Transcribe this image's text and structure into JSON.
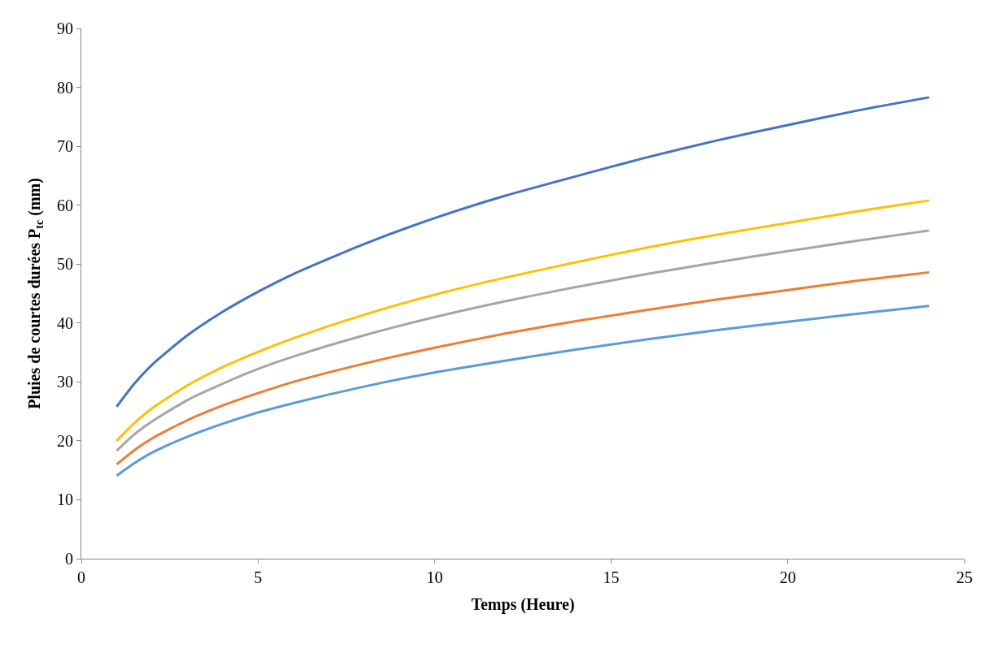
{
  "chart_data": {
    "type": "line",
    "xlabel": "Temps (Heure)",
    "ylabel": "Pluies de courtes durées P$_{tc}$ (mm)",
    "x": [
      1,
      1.5,
      2,
      3,
      4,
      5,
      6,
      8,
      10,
      12,
      14,
      16,
      18,
      20,
      22,
      24
    ],
    "series": [
      {
        "color": "#4472c4",
        "values": [
          25.8,
          29.7,
          32.9,
          37.9,
          41.9,
          45.3,
          48.3,
          53.4,
          57.8,
          61.6,
          64.9,
          68.1,
          71.0,
          73.6,
          76.1,
          78.3
        ]
      },
      {
        "color": "#ed7d31",
        "values": [
          16.0,
          18.4,
          20.4,
          23.5,
          26.0,
          28.1,
          30.0,
          33.1,
          35.8,
          38.2,
          40.3,
          42.2,
          44.0,
          45.6,
          47.2,
          48.6
        ]
      },
      {
        "color": "#a5a5a5",
        "values": [
          18.3,
          21.1,
          23.3,
          26.9,
          29.7,
          32.2,
          34.3,
          37.9,
          41.0,
          43.7,
          46.1,
          48.3,
          50.3,
          52.2,
          54.0,
          55.7
        ]
      },
      {
        "color": "#ffc000",
        "values": [
          20.0,
          23.0,
          25.5,
          29.4,
          32.5,
          35.1,
          37.4,
          41.4,
          44.8,
          47.7,
          50.3,
          52.8,
          55.0,
          57.0,
          59.0,
          60.8
        ]
      },
      {
        "color": "#5b9bd5",
        "values": [
          14.1,
          16.2,
          18.0,
          20.7,
          22.9,
          24.8,
          26.4,
          29.2,
          31.6,
          33.6,
          35.5,
          37.2,
          38.8,
          40.2,
          41.6,
          42.9
        ]
      }
    ],
    "xlim": [
      0,
      25
    ],
    "xticks": [
      0,
      5,
      10,
      15,
      20,
      25
    ],
    "ylim": [
      0,
      90
    ],
    "yticks": [
      0,
      10,
      20,
      30,
      40,
      50,
      60,
      70,
      80,
      90
    ],
    "marker": "none",
    "line_style": "solid"
  }
}
